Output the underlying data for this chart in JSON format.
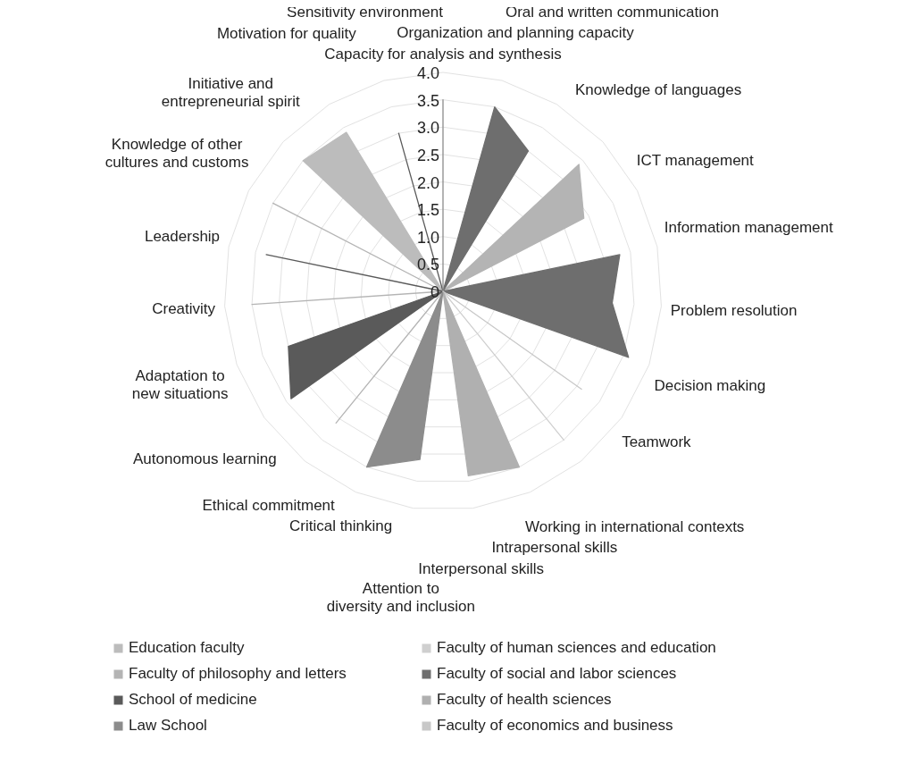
{
  "chart_data": {
    "type": "radar",
    "categories": [
      "Capacity for analysis and synthesis",
      "Organization and planning capacity",
      "Oral and written communication",
      "Knowledge of languages",
      "ICT management",
      "Information management",
      "Problem resolution",
      "Decision making",
      "Teamwork",
      "Working in international contexts",
      "Intrapersonal skills",
      "Interpersonal skills",
      "Attention to\ndiversity and inclusion",
      "Critical thinking",
      "Ethical commitment",
      "Autonomous learning",
      "Adaptation to\nnew situations",
      "Creativity",
      "Leadership",
      "Knowledge of other\ncultures and customs",
      "Initiative and\nentrepreneurial spirit",
      "Motivation for quality",
      "Sensitivity environment"
    ],
    "ylim": [
      0,
      4
    ],
    "yticks": [
      0,
      0.5,
      {
        "value": 1,
        "label": "1.0"
      },
      1.5,
      {
        "value": 2,
        "label": "2.0"
      },
      2.5,
      {
        "value": 3,
        "label": "3.0"
      },
      3.5,
      {
        "value": 4,
        "label": "4.0"
      }
    ],
    "grid": true,
    "legend": "bottom",
    "series": [
      {
        "name": "Education faculty",
        "color": "#bcbcbc",
        "values": [
          0,
          0,
          0,
          0,
          0,
          0,
          0,
          0,
          0,
          0,
          0,
          0,
          0,
          0,
          0,
          0,
          0,
          0,
          0,
          0,
          3.5,
          3.4,
          0
        ]
      },
      {
        "name": "Faculty of human sciences and education",
        "color": "#cfcfcf",
        "values": [
          0,
          0,
          0,
          0,
          0,
          0,
          0,
          0,
          0,
          3.5,
          0,
          0,
          0,
          0,
          0,
          0,
          0,
          0,
          0,
          0,
          0,
          0,
          0
        ]
      },
      {
        "name": "Faculty of philosophy and letters",
        "color": "#b4b4b4",
        "values": [
          0,
          0,
          0,
          3.4,
          2.9,
          0,
          0,
          0,
          0,
          0,
          0,
          0,
          0,
          0,
          3.1,
          0,
          0,
          3.5,
          0,
          3.5,
          0,
          0,
          0
        ]
      },
      {
        "name": "Faculty of social and labor sciences",
        "color": "#6e6e6e",
        "values": [
          0,
          3.5,
          3.0,
          0,
          0,
          3.3,
          3.1,
          3.6,
          0,
          0,
          0,
          0,
          0,
          0,
          0,
          0,
          0,
          0,
          0,
          0,
          0,
          0,
          0
        ]
      },
      {
        "name": "School of medicine",
        "color": "#5a5a5a",
        "values": [
          0,
          0,
          0,
          0,
          0,
          0,
          0,
          0,
          0,
          0,
          0,
          0,
          0,
          0,
          0,
          3.4,
          3.0,
          0,
          3.3,
          0,
          0,
          0,
          3.0
        ]
      },
      {
        "name": "Faculty of health sciences",
        "color": "#b0b0b0",
        "values": [
          0,
          0,
          0,
          0,
          0,
          0,
          0,
          0,
          0,
          0,
          3.5,
          3.4,
          0,
          0,
          0,
          0,
          0,
          0,
          0,
          0,
          0,
          0,
          0
        ]
      },
      {
        "name": "Law School",
        "color": "#8c8c8c",
        "values": [
          3.5,
          0,
          0,
          0,
          0,
          0,
          0,
          0,
          0,
          0,
          0,
          0,
          3.1,
          3.5,
          0,
          0,
          0,
          0,
          0,
          0,
          0,
          0,
          0
        ]
      },
      {
        "name": "Faculty of economics and business",
        "color": "#c8c8c8",
        "values": [
          0,
          0,
          0,
          0,
          0,
          0,
          0,
          0,
          3.1,
          0,
          0,
          0,
          0,
          0,
          0,
          0,
          0,
          0,
          0,
          0,
          0,
          0,
          0
        ]
      }
    ]
  }
}
